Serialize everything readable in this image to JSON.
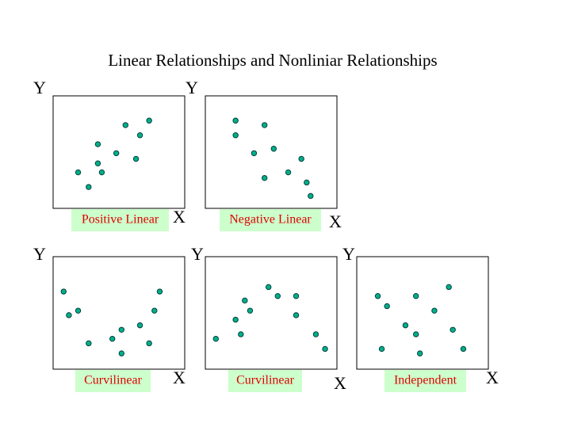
{
  "title": "Linear Relationships and Nonliniar Relationships",
  "chart_data": [
    {
      "type": "scatter",
      "title": "Positive Linear",
      "xlabel": "X",
      "ylabel": "Y",
      "color": "#00b088",
      "xlim": [
        0,
        100
      ],
      "ylim": [
        0,
        100
      ],
      "x": [
        55,
        73,
        66,
        34,
        48,
        63,
        34,
        19,
        37,
        27
      ],
      "y": [
        74,
        78,
        65,
        57,
        49,
        44,
        40,
        32,
        32,
        19
      ]
    },
    {
      "type": "scatter",
      "title": "Negative Linear",
      "xlabel": "X",
      "ylabel": "Y",
      "color": "#00b088",
      "xlim": [
        0,
        100
      ],
      "ylim": [
        0,
        100
      ],
      "x": [
        23,
        45,
        23,
        52,
        37,
        73,
        63,
        45,
        77,
        80
      ],
      "y": [
        78,
        74,
        65,
        53,
        49,
        44,
        32,
        27,
        23,
        11
      ]
    },
    {
      "type": "scatter",
      "title": "Curvilinear",
      "xlabel": "X",
      "ylabel": "Y",
      "color": "#00b088",
      "xlim": [
        0,
        100
      ],
      "ylim": [
        0,
        100
      ],
      "x": [
        8,
        81,
        19,
        12,
        77,
        66,
        52,
        45,
        27,
        73,
        52
      ],
      "y": [
        69,
        69,
        52,
        48,
        52,
        39,
        35,
        27,
        23,
        23,
        14
      ]
    },
    {
      "type": "scatter",
      "title": "Curvilinear",
      "xlabel": "X",
      "ylabel": "Y",
      "color": "#00b088",
      "xlim": [
        0,
        100
      ],
      "ylim": [
        0,
        100
      ],
      "x": [
        48,
        55,
        69,
        30,
        34,
        23,
        69,
        27,
        84,
        8,
        91
      ],
      "y": [
        73,
        65,
        65,
        61,
        52,
        44,
        48,
        31,
        31,
        27,
        18
      ]
    },
    {
      "type": "scatter",
      "title": "Independent",
      "xlabel": "X",
      "ylabel": "Y",
      "color": "#00b088",
      "xlim": [
        0,
        100
      ],
      "ylim": [
        0,
        100
      ],
      "x": [
        70,
        16,
        45,
        23,
        59,
        37,
        73,
        45,
        19,
        81,
        48
      ],
      "y": [
        73,
        65,
        65,
        56,
        52,
        39,
        35,
        31,
        18,
        18,
        14
      ]
    }
  ]
}
